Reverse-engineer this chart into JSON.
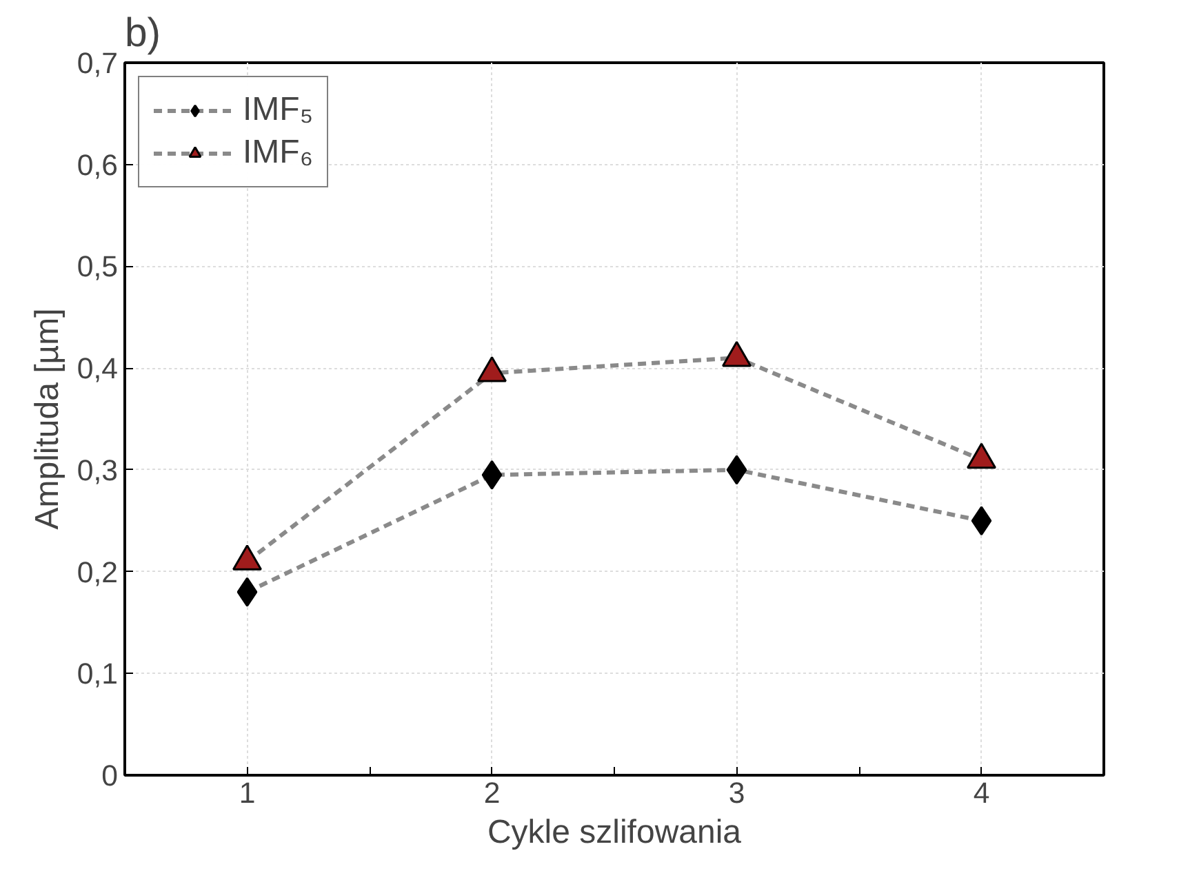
{
  "chart_data": {
    "type": "line",
    "title": "b)",
    "xlabel": "Cykle szlifowania",
    "ylabel": "Amplituda [µm]",
    "x": [
      1,
      2,
      3,
      4
    ],
    "series": [
      {
        "name": "IMF₅",
        "color": "#000000",
        "marker": "diamond",
        "values": [
          0.18,
          0.295,
          0.3,
          0.25
        ]
      },
      {
        "name": "IMF₆",
        "color": "#a01c1c",
        "marker": "triangle",
        "values": [
          0.21,
          0.395,
          0.41,
          0.31
        ]
      }
    ],
    "xlim": [
      0.5,
      4.5
    ],
    "xticks": [
      1,
      {
        "value": 1.5,
        "label": null
      },
      2,
      {
        "value": 2.5,
        "label": null
      },
      3,
      {
        "value": 3.5,
        "label": null
      },
      4
    ],
    "ylim": [
      0,
      0.7
    ],
    "yticks": [
      0,
      {
        "value": 0.1,
        "label": "0,1"
      },
      {
        "value": 0.2,
        "label": "0,2"
      },
      {
        "value": 0.3,
        "label": "0,3"
      },
      {
        "value": 0.4,
        "label": "0,4"
      },
      {
        "value": 0.5,
        "label": "0,5"
      },
      {
        "value": 0.6,
        "label": "0,6"
      },
      {
        "value": 0.7,
        "label": "0,7"
      }
    ],
    "grid": true,
    "legend": "top left",
    "line_style": "dashed"
  }
}
